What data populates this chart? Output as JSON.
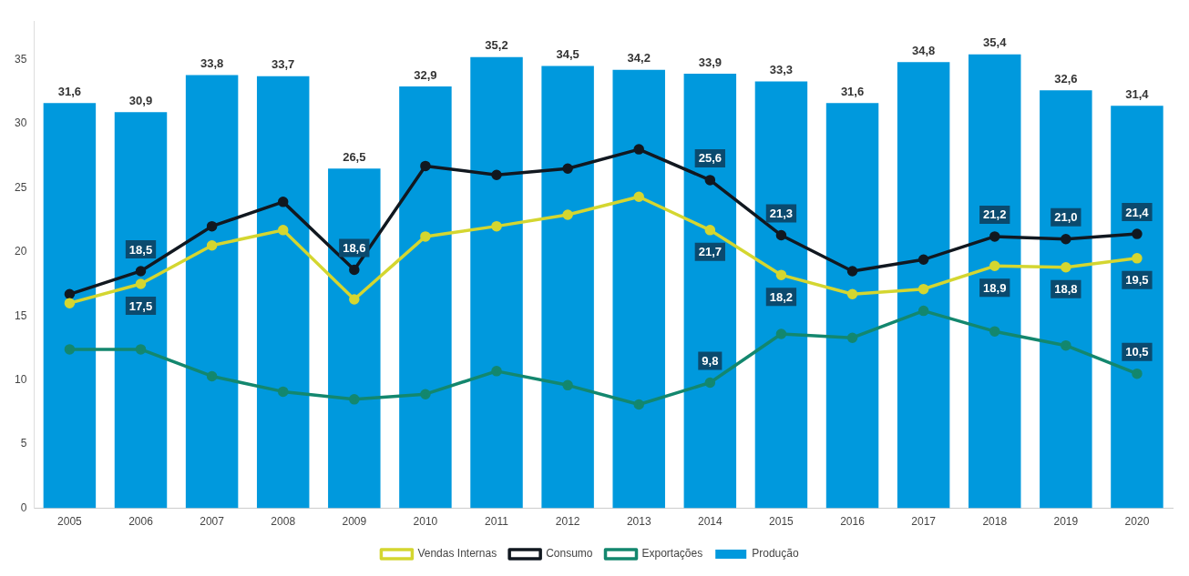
{
  "chart_data": {
    "type": "bar",
    "categories": [
      "2005",
      "2006",
      "2007",
      "2008",
      "2009",
      "2010",
      "2011",
      "2012",
      "2013",
      "2014",
      "2015",
      "2016",
      "2017",
      "2018",
      "2019",
      "2020"
    ],
    "series": [
      {
        "name": "Vendas Internas",
        "type": "line",
        "color": "#d4d630",
        "values": [
          16.0,
          17.5,
          20.5,
          21.7,
          16.3,
          21.2,
          22.0,
          22.9,
          24.3,
          21.7,
          18.2,
          16.7,
          17.1,
          18.9,
          18.8,
          19.5
        ],
        "value_labels": [
          null,
          "17,5",
          null,
          null,
          null,
          null,
          null,
          null,
          null,
          "21,7",
          "18,2",
          null,
          null,
          "18,9",
          "18,8",
          "19,5"
        ]
      },
      {
        "name": "Consumo",
        "type": "line",
        "color": "#111820",
        "values": [
          16.7,
          18.5,
          22.0,
          23.9,
          18.6,
          26.7,
          26.0,
          26.5,
          28.0,
          25.6,
          21.3,
          18.5,
          19.4,
          21.2,
          21.0,
          21.4
        ],
        "value_labels": [
          null,
          "18,5",
          null,
          null,
          "18,6",
          null,
          null,
          null,
          null,
          "25,6",
          "21,3",
          null,
          null,
          "21,2",
          "21,0",
          "21,4"
        ]
      },
      {
        "name": "Exportações",
        "type": "line",
        "color": "#13876e",
        "values": [
          12.4,
          12.4,
          10.3,
          9.1,
          8.5,
          8.9,
          10.7,
          9.6,
          8.1,
          9.8,
          13.6,
          13.3,
          15.4,
          13.8,
          12.7,
          10.5
        ],
        "value_labels": [
          null,
          null,
          null,
          null,
          null,
          null,
          null,
          null,
          null,
          "9,8",
          null,
          null,
          null,
          null,
          null,
          "10,5"
        ]
      },
      {
        "name": "Produção",
        "color": "#0099dd",
        "values": [
          31.6,
          30.9,
          33.8,
          33.7,
          26.5,
          32.9,
          35.2,
          34.5,
          34.2,
          33.9,
          33.3,
          31.6,
          34.8,
          35.4,
          32.6,
          31.4
        ],
        "value_labels": [
          "31,6",
          "30,9",
          "33,8",
          "33,7",
          "26,5",
          "32,9",
          "35,2",
          "34,5",
          "34,2",
          "33,9",
          "33,3",
          "31,6",
          "34,8",
          "35,4",
          "32,6",
          "31,4"
        ]
      }
    ],
    "ylim": [
      0,
      38
    ],
    "yticks": [
      0,
      5,
      10,
      15,
      20,
      25,
      30,
      35
    ],
    "grid": false,
    "legend": "bottom",
    "marker": "circle",
    "line_style": "solid"
  }
}
